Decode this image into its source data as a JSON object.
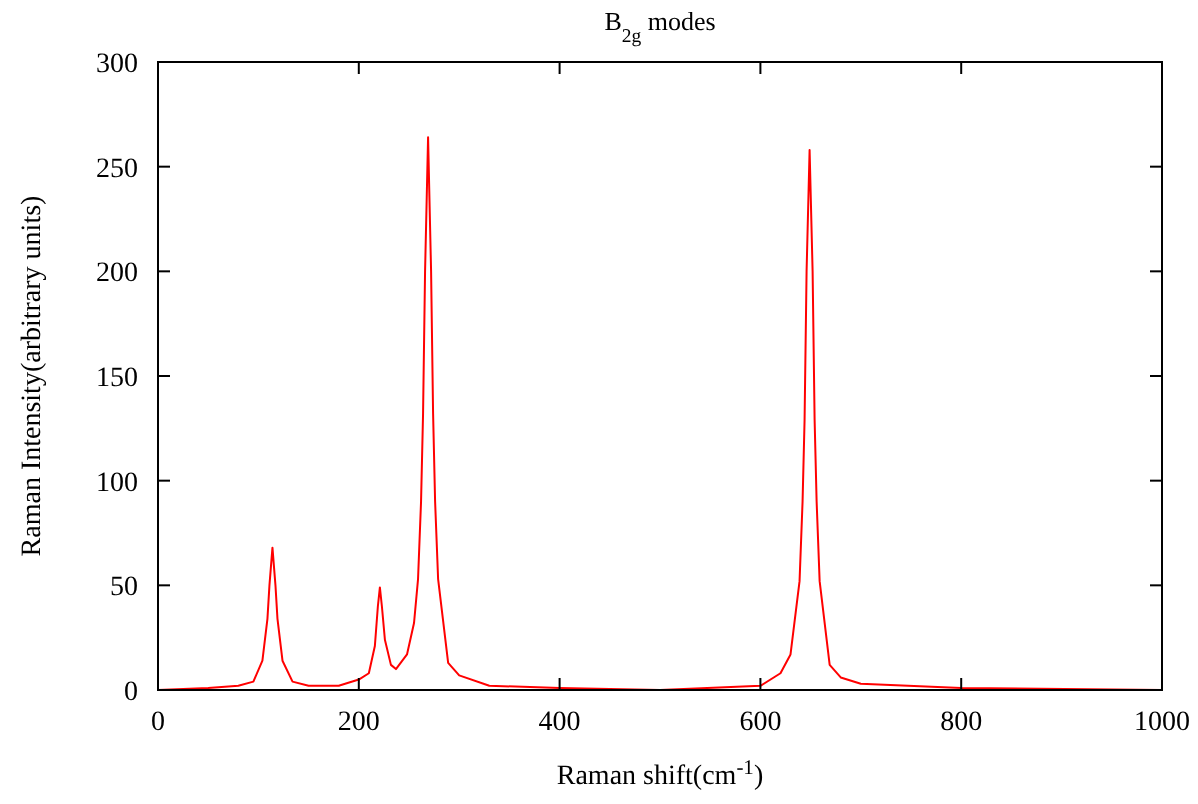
{
  "chart_data": {
    "type": "line",
    "title": "B$_{2g}$ modes",
    "xlabel": "Raman shift(cm$^{-1}$)",
    "ylabel": "Raman Intensity(arbitrary units)",
    "xlim": [
      0,
      1000
    ],
    "ylim": [
      0,
      300
    ],
    "xticks": [
      0,
      200,
      400,
      600,
      800,
      1000
    ],
    "yticks": [
      0,
      50,
      100,
      150,
      200,
      250,
      300
    ],
    "grid": false,
    "series": [
      {
        "color": "#ff0000",
        "x": [
          0,
          50,
          80,
          95,
          104,
          109,
          111,
          114,
          117,
          119,
          124,
          134,
          150,
          180,
          200,
          210,
          216,
          219,
          221,
          223,
          226,
          232,
          237,
          248,
          255,
          259,
          262,
          264,
          266,
          269,
          272,
          274,
          276,
          279,
          289,
          300,
          330,
          400,
          500,
          600,
          620,
          630,
          639,
          642,
          644,
          646,
          649,
          652,
          654,
          656,
          659,
          669,
          680,
          700,
          800,
          1000
        ],
        "values": [
          0,
          1,
          2,
          4,
          14,
          34,
          50,
          68,
          50,
          34,
          14,
          4,
          2,
          2,
          5,
          8,
          21,
          40,
          49,
          40,
          24,
          12,
          10,
          17,
          32,
          53,
          90,
          132,
          200,
          264,
          200,
          132,
          90,
          53,
          13,
          7,
          2,
          1,
          0,
          2,
          8,
          17,
          52,
          90,
          129,
          200,
          258,
          200,
          129,
          90,
          52,
          12,
          6,
          3,
          1,
          0
        ]
      }
    ]
  }
}
